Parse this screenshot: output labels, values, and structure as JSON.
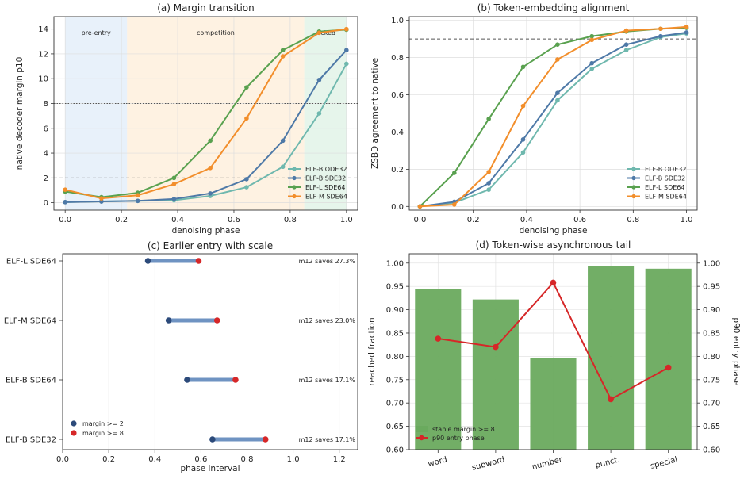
{
  "chart_data": [
    {
      "type": "line",
      "title": "(a) Margin transition",
      "xlabel": "denoising phase",
      "ylabel": "native decoder margin p10",
      "xlim": [
        -0.04,
        1.04
      ],
      "ylim": [
        -0.6,
        15
      ],
      "xticks": [
        0.0,
        0.2,
        0.4,
        0.6,
        0.8,
        1.0
      ],
      "xtick_labels": [
        "0.0",
        "0.2",
        "0.4",
        "0.6",
        "0.8",
        "1.0"
      ],
      "yticks": [
        0,
        2,
        4,
        6,
        8,
        10,
        12,
        14
      ],
      "ytick_labels": [
        "0",
        "2",
        "4",
        "6",
        "8",
        "10",
        "12",
        "14"
      ],
      "grid": true,
      "regions": [
        {
          "label": "pre-entry",
          "x0": 0.0,
          "x1": 0.22,
          "color": "#dbe9f7"
        },
        {
          "label": "competition",
          "x0": 0.22,
          "x1": 0.85,
          "color": "#fdebd3"
        },
        {
          "label": "locked",
          "x0": 0.85,
          "x1": 1.0,
          "color": "#d9efe1"
        }
      ],
      "hlines": [
        {
          "y": 8,
          "style": "dotted"
        },
        {
          "y": 2,
          "style": "dashed"
        }
      ],
      "x": [
        0.0,
        0.129,
        0.258,
        0.387,
        0.516,
        0.645,
        0.774,
        0.903,
        1.0
      ],
      "series": [
        {
          "name": "ELF-B ODE32",
          "color": "#6fb8ae",
          "values": [
            0.05,
            0.1,
            0.15,
            0.2,
            0.55,
            1.25,
            2.9,
            7.2,
            11.2
          ]
        },
        {
          "name": "ELF-B SDE32",
          "color": "#4e79a7",
          "values": [
            0.05,
            0.1,
            0.15,
            0.3,
            0.75,
            1.9,
            5.0,
            9.9,
            12.3
          ]
        },
        {
          "name": "ELF-L SDE64",
          "color": "#59a14f",
          "values": [
            0.9,
            0.45,
            0.8,
            2.0,
            5.0,
            9.3,
            12.3,
            13.8,
            13.95
          ]
        },
        {
          "name": "ELF-M SDE64",
          "color": "#f28e2b",
          "values": [
            1.05,
            0.35,
            0.6,
            1.5,
            2.8,
            6.8,
            11.8,
            13.7,
            14.0
          ]
        }
      ],
      "legend": "lower-right"
    },
    {
      "type": "line",
      "title": "(b) Token-embedding alignment",
      "xlabel": "denoising phase",
      "ylabel": "ZSBD agreement to native",
      "xlim": [
        -0.04,
        1.04
      ],
      "ylim": [
        -0.02,
        1.02
      ],
      "xticks": [
        0.0,
        0.2,
        0.4,
        0.6,
        0.8,
        1.0
      ],
      "xtick_labels": [
        "0.0",
        "0.2",
        "0.4",
        "0.6",
        "0.8",
        "1.0"
      ],
      "yticks": [
        0.0,
        0.2,
        0.4,
        0.6,
        0.8,
        1.0
      ],
      "ytick_labels": [
        "0.0",
        "0.2",
        "0.4",
        "0.6",
        "0.8",
        "1.0"
      ],
      "grid": true,
      "hlines": [
        {
          "y": 0.9,
          "style": "dashed"
        }
      ],
      "x": [
        0.0,
        0.129,
        0.258,
        0.387,
        0.516,
        0.645,
        0.774,
        0.903,
        1.0
      ],
      "series": [
        {
          "name": "ELF-B ODE32",
          "color": "#6fb8ae",
          "values": [
            0.0,
            0.02,
            0.09,
            0.29,
            0.57,
            0.74,
            0.84,
            0.91,
            0.93
          ]
        },
        {
          "name": "ELF-B SDE32",
          "color": "#4e79a7",
          "values": [
            0.0,
            0.025,
            0.125,
            0.36,
            0.61,
            0.77,
            0.87,
            0.915,
            0.935
          ]
        },
        {
          "name": "ELF-L SDE64",
          "color": "#59a14f",
          "values": [
            0.0,
            0.18,
            0.47,
            0.75,
            0.87,
            0.915,
            0.94,
            0.955,
            0.96
          ]
        },
        {
          "name": "ELF-M SDE64",
          "color": "#f28e2b",
          "values": [
            0.0,
            0.01,
            0.185,
            0.54,
            0.79,
            0.895,
            0.945,
            0.955,
            0.965
          ]
        }
      ],
      "legend": "lower-right"
    },
    {
      "type": "dumbbell",
      "title": "(c) Earlier entry with scale",
      "xlabel": "phase interval",
      "xlim": [
        0.0,
        1.28
      ],
      "xticks": [
        0.0,
        0.2,
        0.4,
        0.6,
        0.8,
        1.0,
        1.2
      ],
      "xtick_labels": [
        "0.0",
        "0.2",
        "0.4",
        "0.6",
        "0.8",
        "1.0",
        "1.2"
      ],
      "grid": true,
      "rows": [
        {
          "label": "ELF-L SDE64",
          "start": 0.37,
          "end": 0.59,
          "note": "m12 saves 27.3%"
        },
        {
          "label": "ELF-M SDE64",
          "start": 0.46,
          "end": 0.67,
          "note": "m12 saves 23.0%"
        },
        {
          "label": "ELF-B SDE64",
          "start": 0.54,
          "end": 0.75,
          "note": "m12 saves 17.1%"
        },
        {
          "label": "ELF-B SDE32",
          "start": 0.65,
          "end": 0.88,
          "note": "m12 saves 17.1%"
        }
      ],
      "start_name": "margin >= 2",
      "start_color": "#2c4a7a",
      "end_name": "margin >= 8",
      "end_color": "#d62728",
      "bar_color": "#6f93c2",
      "legend": "lower-left"
    },
    {
      "type": "bar",
      "title": "(d) Token-wise asynchronous tail",
      "ylabel": "reached fraction",
      "y2label": "p90 entry phase",
      "categories": [
        "word",
        "subword",
        "number",
        "punct.",
        "special"
      ],
      "ylim": [
        0.6,
        1.02
      ],
      "y2lim": [
        0.6,
        1.02
      ],
      "yticks": [
        0.6,
        0.65,
        0.7,
        0.75,
        0.8,
        0.85,
        0.9,
        0.95,
        1.0
      ],
      "ytick_labels": [
        "0.60",
        "0.65",
        "0.70",
        "0.75",
        "0.80",
        "0.85",
        "0.90",
        "0.95",
        "1.00"
      ],
      "y2tick_labels": [
        "0.60",
        "0.65",
        "0.70",
        "0.75",
        "0.80",
        "0.85",
        "0.90",
        "0.95",
        "1.00"
      ],
      "grid": true,
      "series": [
        {
          "name": "stable margin >= 8",
          "kind": "bar",
          "color": "#6aaa5e",
          "values": [
            0.945,
            0.922,
            0.797,
            0.993,
            0.988
          ]
        },
        {
          "name": "p90 entry phase",
          "kind": "line",
          "axis": "right",
          "color": "#d62728",
          "values": [
            0.838,
            0.82,
            0.958,
            0.708,
            0.776
          ]
        }
      ],
      "legend": "lower-left"
    }
  ]
}
